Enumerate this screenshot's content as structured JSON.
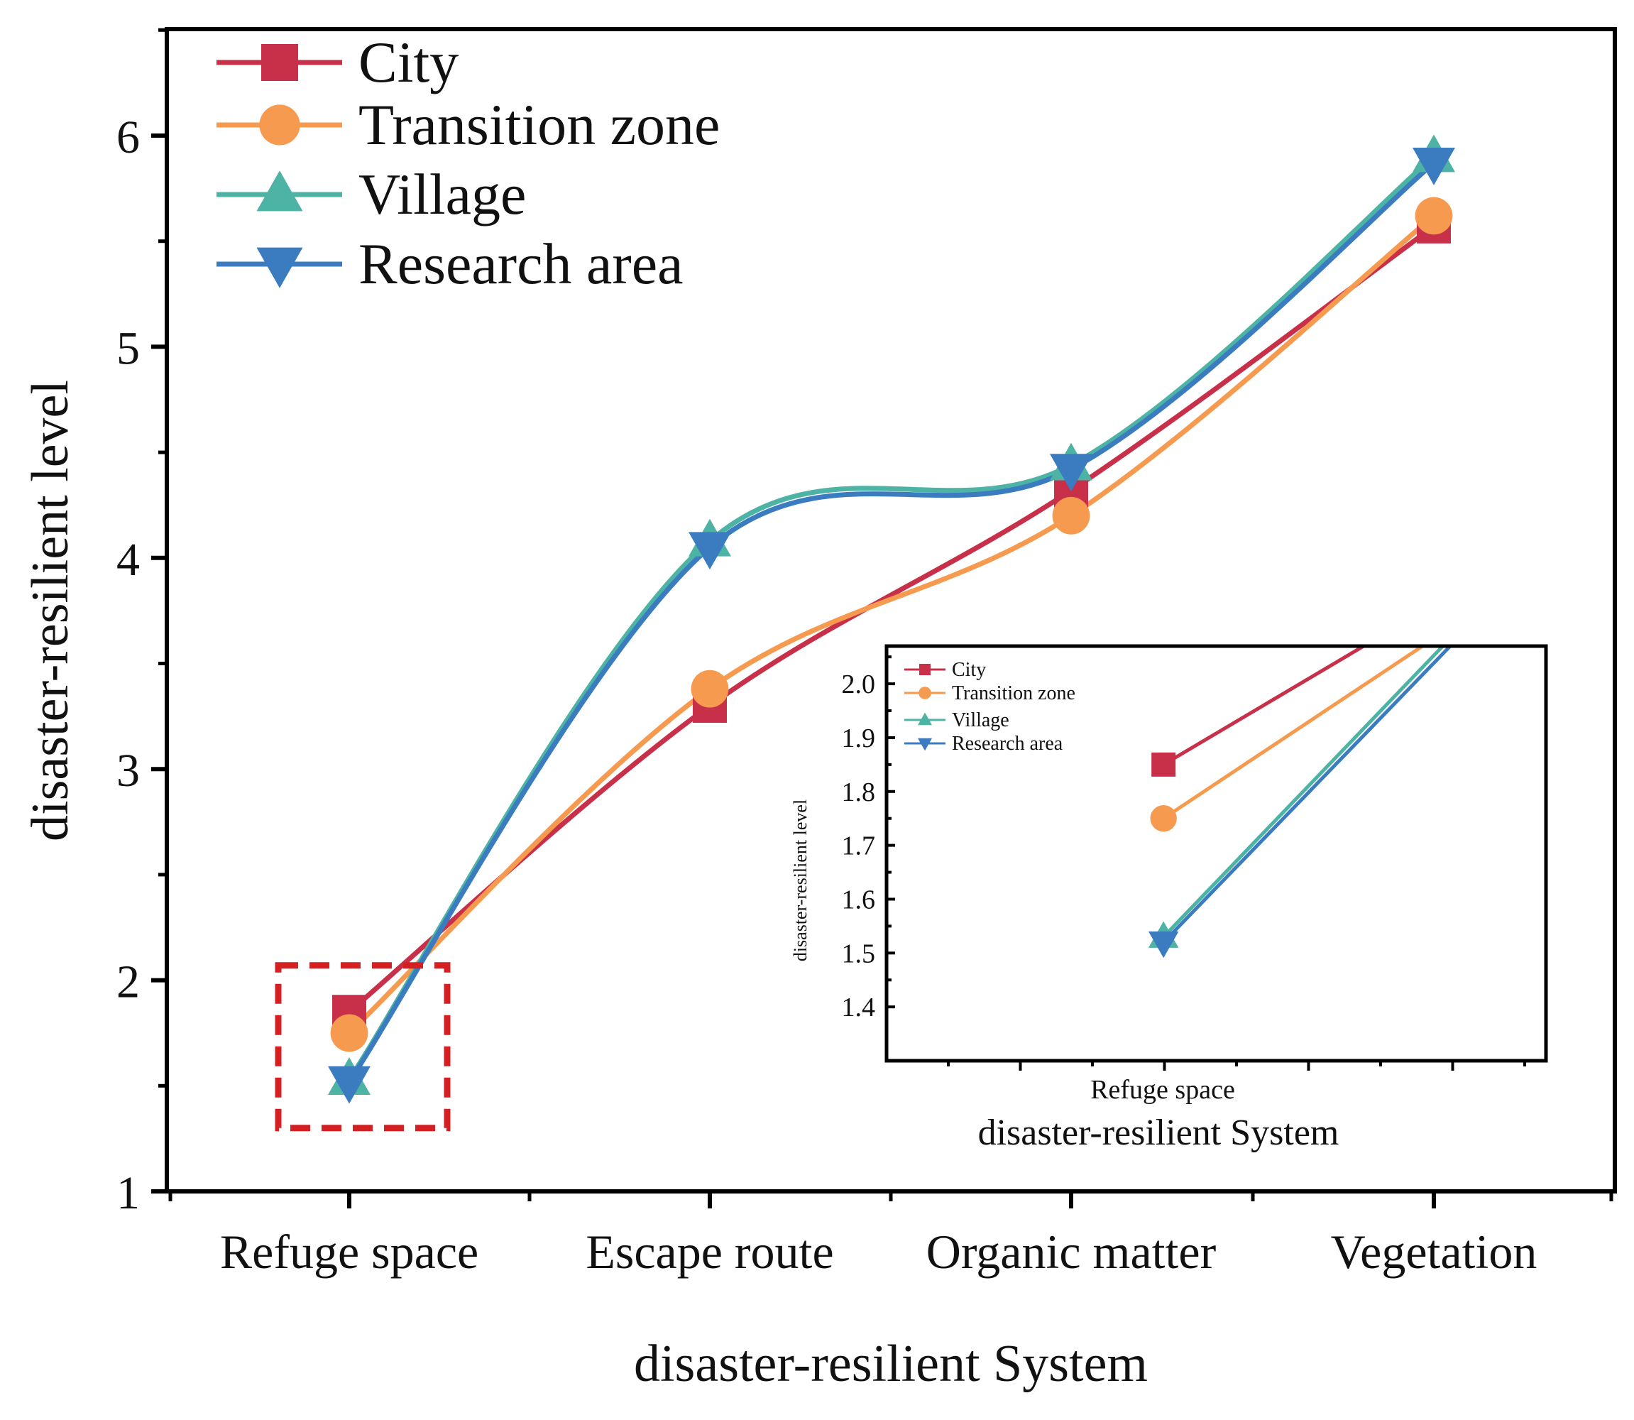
{
  "chart_data": {
    "type": "line",
    "categories": [
      "Refuge space",
      "Escape route",
      "Organic matter",
      "Vegetation"
    ],
    "xlabel": "disaster-resilient System",
    "ylabel": "disaster-resilient level",
    "ylim": [
      1,
      6.5
    ],
    "yticks": [
      1,
      2,
      3,
      4,
      5,
      6
    ],
    "grid": false,
    "legend_position": "top-left",
    "series": [
      {
        "name": "City",
        "color": "#c8304a",
        "marker": "square",
        "values": [
          1.85,
          3.3,
          4.32,
          5.57
        ]
      },
      {
        "name": "Transition zone",
        "color": "#f59a4e",
        "marker": "circle",
        "values": [
          1.75,
          3.38,
          4.2,
          5.62
        ]
      },
      {
        "name": "Village",
        "color": "#4db3a4",
        "marker": "triangle-up",
        "values": [
          1.53,
          4.08,
          4.44,
          5.9
        ]
      },
      {
        "name": "Research area",
        "color": "#3a7cbf",
        "marker": "triangle-down",
        "values": [
          1.52,
          4.05,
          4.42,
          5.87
        ]
      }
    ],
    "highlight_box": {
      "category": "Refuge space",
      "yrange": [
        1.3,
        2.07
      ],
      "color": "#d42020"
    },
    "inset": {
      "xlabel": "disaster-resilient System",
      "ylabel": "disaster-resilient level",
      "category_shown": "Refuge space",
      "ylim": [
        1.3,
        2.07
      ],
      "yticks": [
        "2.0",
        "1.9",
        "1.8",
        "1.7",
        "1.6",
        "1.5",
        "1.4"
      ],
      "xlim": [
        0.79,
        1.29
      ]
    }
  }
}
